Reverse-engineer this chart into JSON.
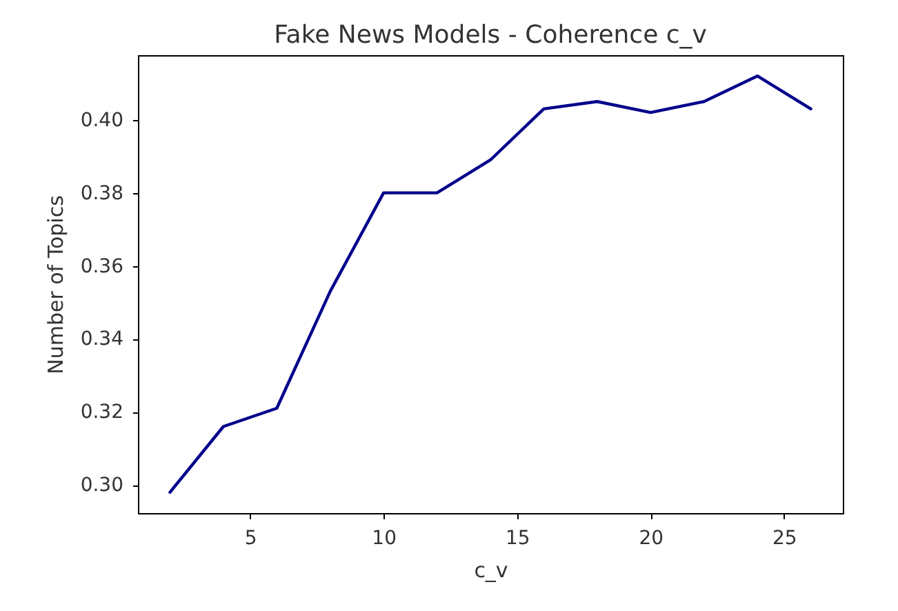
{
  "chart_data": {
    "type": "line",
    "title": "Fake News Models - Coherence c_v",
    "xlabel": "c_v",
    "ylabel": "Number of Topics",
    "x": [
      2,
      4,
      6,
      8,
      10,
      12,
      14,
      16,
      18,
      20,
      22,
      24,
      26
    ],
    "series": [
      {
        "color": "#00008b",
        "values": [
          0.298,
          0.316,
          0.321,
          0.353,
          0.38,
          0.38,
          0.389,
          0.403,
          0.405,
          0.402,
          0.405,
          0.412,
          0.403
        ]
      }
    ],
    "xlim": [
      0.8,
      27.2
    ],
    "ylim": [
      0.2923,
      0.4177
    ],
    "xticks": [
      5,
      10,
      15,
      20,
      25
    ],
    "yticks": [
      {
        "value": 0.3,
        "label": "0.30"
      },
      0.32,
      0.34,
      0.36,
      0.38,
      {
        "value": 0.4,
        "label": "0.40"
      }
    ]
  }
}
